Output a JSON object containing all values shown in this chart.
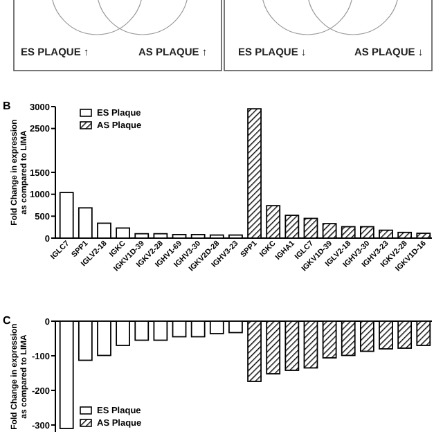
{
  "chart_data": [
    {
      "type": "other",
      "annotations": [
        "ES PLAQUE ↑",
        "AS PLAQUE ↑",
        "ES PLAQUE ↓",
        "AS PLAQUE ↓"
      ]
    },
    {
      "type": "bar",
      "annotations": [
        "B"
      ],
      "ylabel": "Fold Change in expression as compared to LIMA",
      "categories": [
        "IGLC7",
        "SPP1",
        "IGLV2-18",
        "IGKC",
        "IGKV1D-39",
        "IGKV2-28",
        "IGHV1-69",
        "IGHV3-30",
        "IGKV2D-28",
        "IGHV3-23",
        "SPP1",
        "IGKC",
        "IGHA1",
        "IGLC7",
        "IGKV1D-39",
        "IGLV2-18",
        "IGHV3-30",
        "IGHV3-23",
        "IGKV2-28",
        "IGKV1D-16"
      ],
      "ylim": [
        0,
        3000
      ],
      "yticks": [
        0,
        500,
        1000,
        1500,
        2500,
        3000
      ],
      "legend": "top left",
      "series": [
        {
          "name": "ES Plaque",
          "color": "#ffffff",
          "values": [
            1040,
            690,
            340,
            230,
            100,
            100,
            80,
            80,
            70,
            70,
            null,
            null,
            null,
            null,
            null,
            null,
            null,
            null,
            null,
            null
          ]
        },
        {
          "name": "AS Plaque",
          "color": "#000000",
          "values": [
            null,
            null,
            null,
            null,
            null,
            null,
            null,
            null,
            null,
            null,
            2950,
            740,
            520,
            450,
            330,
            260,
            260,
            180,
            130,
            110
          ]
        }
      ]
    },
    {
      "type": "bar",
      "annotations": [
        "C"
      ],
      "ylabel": "Fold Change in expression as compared to LIMA",
      "categories": [
        null,
        null,
        null,
        null,
        null,
        null,
        null,
        null,
        null,
        null,
        null,
        null,
        null,
        null,
        null,
        null,
        null,
        null,
        null,
        null
      ],
      "ylim": [
        -320,
        0
      ],
      "yticks": [
        0,
        -100,
        -200,
        -300
      ],
      "legend": "bottom left",
      "series": [
        {
          "name": "ES Plaque",
          "color": "#ffffff",
          "values": [
            -310,
            -113,
            -99,
            -70,
            -55,
            -55,
            -45,
            -45,
            -36,
            -33,
            null,
            null,
            null,
            null,
            null,
            null,
            null,
            null,
            null,
            null
          ]
        },
        {
          "name": "AS Plaque",
          "color": "#000000",
          "values": [
            null,
            null,
            null,
            null,
            null,
            null,
            null,
            null,
            null,
            null,
            -174,
            -152,
            -142,
            -135,
            -106,
            -99,
            -87,
            -80,
            -78,
            -70
          ]
        }
      ]
    }
  ]
}
